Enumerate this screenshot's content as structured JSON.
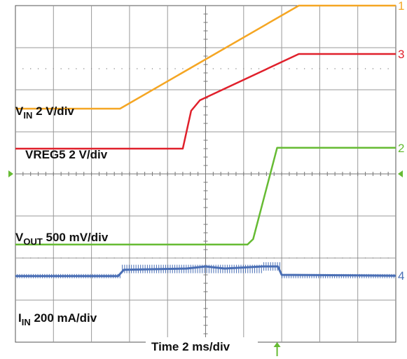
{
  "chart_data": {
    "type": "line",
    "title": "",
    "xlabel": "Time 2 ms/div",
    "ylabel": "",
    "grid": true,
    "x_divisions": 10,
    "y_divisions": 8,
    "xlim": [
      0,
      10
    ],
    "ylim": [
      0,
      8
    ],
    "series": [
      {
        "label_main": "V",
        "label_sub": "IN",
        "label_rest": " 2 V/div",
        "channel": "1",
        "color": "#F5A623",
        "x": [
          0,
          2.75,
          7.45,
          10
        ],
        "y": [
          5.55,
          5.55,
          8.0,
          8.0
        ]
      },
      {
        "label_main": "VREG5 2 V/div",
        "label_sub": "",
        "label_rest": "",
        "channel": "3",
        "color": "#E0202B",
        "x": [
          0,
          4.4,
          4.62,
          4.85,
          7.45,
          10
        ],
        "y": [
          4.6,
          4.6,
          5.5,
          5.75,
          6.85,
          6.85
        ]
      },
      {
        "label_main": "V",
        "label_sub": "OUT",
        "label_rest": " 500 mV/div",
        "channel": "2",
        "color": "#66BB33",
        "x": [
          0,
          6.1,
          6.25,
          6.88,
          10
        ],
        "y": [
          2.32,
          2.32,
          2.45,
          4.62,
          4.62
        ]
      },
      {
        "label_main": "I",
        "label_sub": "IN",
        "label_rest": " 200 mA/div",
        "channel": "4",
        "color": "#4A6FB5",
        "x": [
          0,
          2.7,
          2.85,
          4.5,
          5.0,
          5.5,
          6.5,
          6.9,
          7.0,
          10
        ],
        "y": [
          1.57,
          1.57,
          1.72,
          1.75,
          1.8,
          1.75,
          1.8,
          1.8,
          1.6,
          1.58
        ]
      }
    ],
    "trigger_marker_color": "#66BB33"
  }
}
